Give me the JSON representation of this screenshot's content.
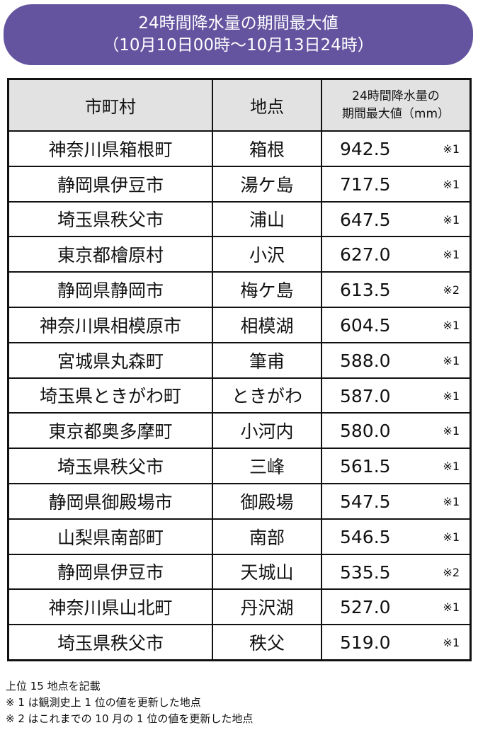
{
  "title": {
    "line1": "24時間降水量の期間最大値",
    "line2": "（10月10日00時～10月13日24時）"
  },
  "table": {
    "headers": [
      "市町村",
      "地点",
      "24時間降水量の",
      "期間最大値（mm）"
    ],
    "rows": [
      {
        "city": "神奈川県箱根町",
        "site": "箱根",
        "value": "942.5",
        "note": "※1"
      },
      {
        "city": "静岡県伊豆市",
        "site": "湯ケ島",
        "value": "717.5",
        "note": "※1"
      },
      {
        "city": "埼玉県秩父市",
        "site": "浦山",
        "value": "647.5",
        "note": "※1"
      },
      {
        "city": "東京都檜原村",
        "site": "小沢",
        "value": "627.0",
        "note": "※1"
      },
      {
        "city": "静岡県静岡市",
        "site": "梅ケ島",
        "value": "613.5",
        "note": "※2"
      },
      {
        "city": "神奈川県相模原市",
        "site": "相模湖",
        "value": "604.5",
        "note": "※1"
      },
      {
        "city": "宮城県丸森町",
        "site": "筆甫",
        "value": "588.0",
        "note": "※1"
      },
      {
        "city": "埼玉県ときがわ町",
        "site": "ときがわ",
        "value": "587.0",
        "note": "※1"
      },
      {
        "city": "東京都奥多摩町",
        "site": "小河内",
        "value": "580.0",
        "note": "※1"
      },
      {
        "city": "埼玉県秩父市",
        "site": "三峰",
        "value": "561.5",
        "note": "※1"
      },
      {
        "city": "静岡県御殿場市",
        "site": "御殿場",
        "value": "547.5",
        "note": "※1"
      },
      {
        "city": "山梨県南部町",
        "site": "南部",
        "value": "546.5",
        "note": "※1"
      },
      {
        "city": "静岡県伊豆市",
        "site": "天城山",
        "value": "535.5",
        "note": "※2"
      },
      {
        "city": "神奈川県山北町",
        "site": "丹沢湖",
        "value": "527.0",
        "note": "※1"
      },
      {
        "city": "埼玉県秩父市",
        "site": "秩父",
        "value": "519.0",
        "note": "※1"
      }
    ]
  },
  "footnotes": [
    "上位 15 地点を記載",
    "※ 1 は観測史上 1 位の値を更新した地点",
    "※ 2 はこれまでの 10 月の 1 位の値を更新した地点"
  ],
  "colors": {
    "title_bg": "#6454a0",
    "header_bg": "#e2e2e2"
  }
}
